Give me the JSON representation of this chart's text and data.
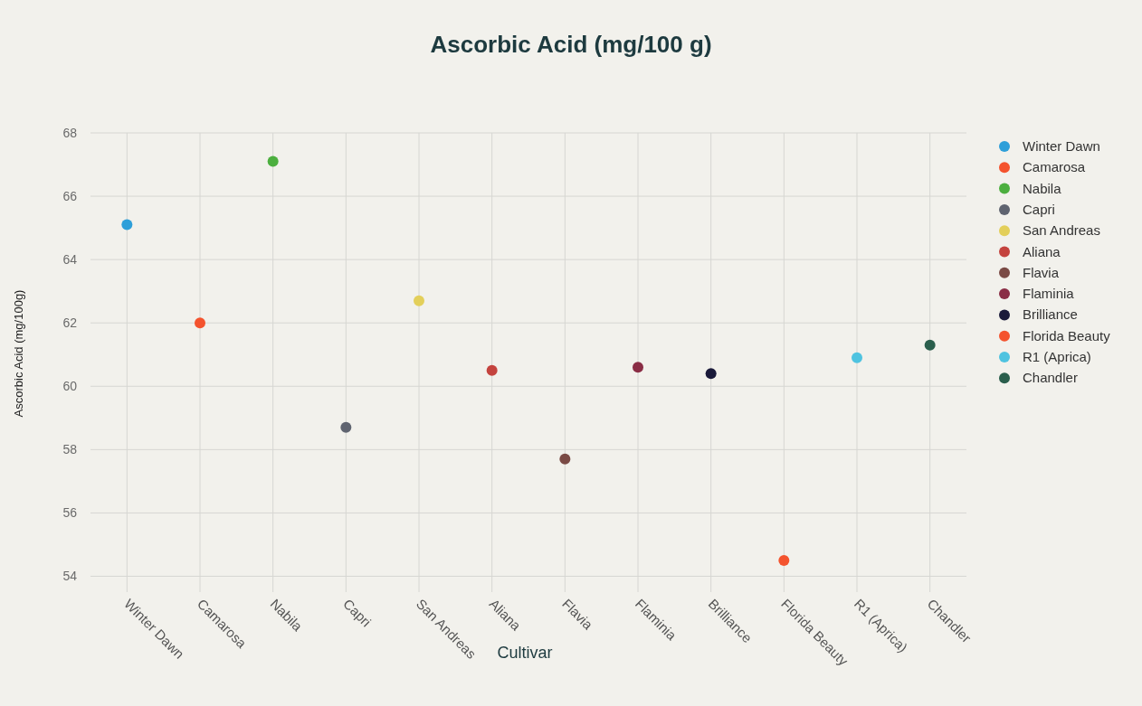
{
  "chart_data": {
    "type": "scatter",
    "title": "Ascorbic Acid (mg/100 g)",
    "xlabel": "Cultivar",
    "ylabel": "Ascorbic Acid (mg/100g)",
    "categories": [
      "Winter Dawn",
      "Camarosa",
      "Nabila",
      "Capri",
      "San Andreas",
      "Aliana",
      "Flavia",
      "Flaminia",
      "Brilliance",
      "Florida Beauty",
      "R1 (Aprica)",
      "Chandler"
    ],
    "series": [
      {
        "name": "Winter Dawn",
        "color": "#2e9fd9",
        "values": [
          65.1,
          null,
          null,
          null,
          null,
          null,
          null,
          null,
          null,
          null,
          null,
          null
        ]
      },
      {
        "name": "Camarosa",
        "color": "#f4532e",
        "values": [
          null,
          62.0,
          null,
          null,
          null,
          null,
          null,
          null,
          null,
          null,
          null,
          null
        ]
      },
      {
        "name": "Nabila",
        "color": "#4caf3f",
        "values": [
          null,
          null,
          67.1,
          null,
          null,
          null,
          null,
          null,
          null,
          null,
          null,
          null
        ]
      },
      {
        "name": "Capri",
        "color": "#5f6470",
        "values": [
          null,
          null,
          null,
          58.7,
          null,
          null,
          null,
          null,
          null,
          null,
          null,
          null
        ]
      },
      {
        "name": "San Andreas",
        "color": "#e3cf5a",
        "values": [
          null,
          null,
          null,
          null,
          62.7,
          null,
          null,
          null,
          null,
          null,
          null,
          null
        ]
      },
      {
        "name": "Aliana",
        "color": "#c4433e",
        "values": [
          null,
          null,
          null,
          null,
          null,
          60.5,
          null,
          null,
          null,
          null,
          null,
          null
        ]
      },
      {
        "name": "Flavia",
        "color": "#7a4a45",
        "values": [
          null,
          null,
          null,
          null,
          null,
          null,
          57.7,
          null,
          null,
          null,
          null,
          null
        ]
      },
      {
        "name": "Flaminia",
        "color": "#8a2d45",
        "values": [
          null,
          null,
          null,
          null,
          null,
          null,
          null,
          60.6,
          null,
          null,
          null,
          null
        ]
      },
      {
        "name": "Brilliance",
        "color": "#1a1a3a",
        "values": [
          null,
          null,
          null,
          null,
          null,
          null,
          null,
          null,
          60.4,
          null,
          null,
          null
        ]
      },
      {
        "name": "Florida Beauty",
        "color": "#f4532e",
        "values": [
          null,
          null,
          null,
          null,
          null,
          null,
          null,
          null,
          null,
          54.5,
          null,
          null
        ]
      },
      {
        "name": "R1 (Aprica)",
        "color": "#4fc3e0",
        "values": [
          null,
          null,
          null,
          null,
          null,
          null,
          null,
          null,
          null,
          null,
          60.9,
          null
        ]
      },
      {
        "name": "Chandler",
        "color": "#2a5e4c",
        "values": [
          null,
          null,
          null,
          null,
          null,
          null,
          null,
          null,
          null,
          null,
          null,
          61.3
        ]
      }
    ],
    "ylim": [
      53.5,
      68
    ],
    "yticks": [
      54,
      56,
      58,
      60,
      62,
      64,
      66,
      68
    ],
    "grid": true,
    "legend": "right",
    "marker": "circle"
  }
}
